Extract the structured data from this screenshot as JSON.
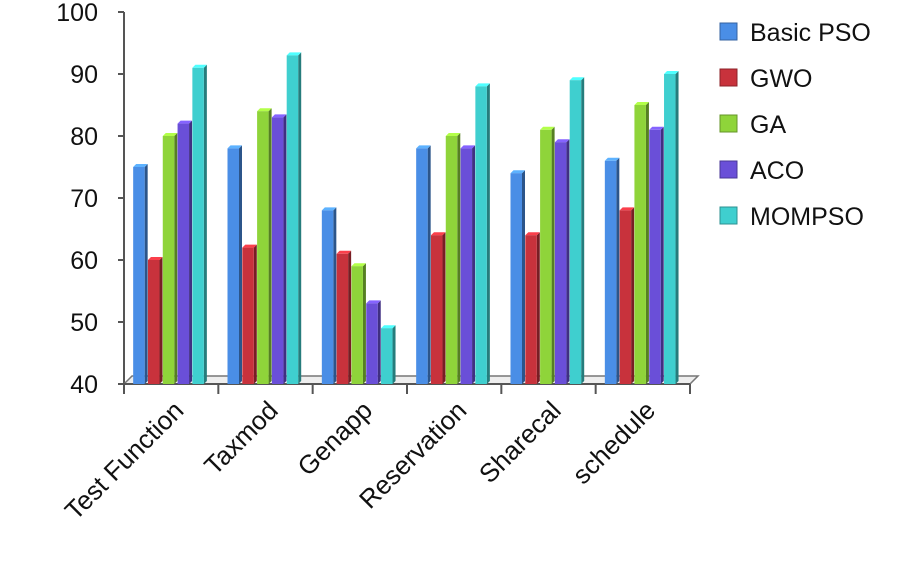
{
  "chart_data": {
    "type": "bar",
    "categories": [
      "Test Function",
      "Taxmod",
      "Genapp",
      "Reservation",
      "Sharecal",
      "schedule"
    ],
    "series": [
      {
        "name": "Basic PSO",
        "color": "#4a8ee6",
        "values": [
          75,
          78,
          68,
          78,
          74,
          76
        ]
      },
      {
        "name": "GWO",
        "color": "#c8323c",
        "values": [
          60,
          62,
          61,
          64,
          64,
          68
        ]
      },
      {
        "name": "GA",
        "color": "#8fd43a",
        "values": [
          80,
          84,
          59,
          80,
          81,
          85
        ]
      },
      {
        "name": "ACO",
        "color": "#6a4fd8",
        "values": [
          82,
          83,
          53,
          78,
          79,
          81
        ]
      },
      {
        "name": "MOMPSO",
        "color": "#3fcfcf",
        "values": [
          91,
          93,
          49,
          88,
          89,
          90
        ]
      }
    ],
    "ylim": [
      40,
      100
    ],
    "yticks": [
      "40",
      "50",
      "60",
      "70",
      "80",
      "90",
      "100"
    ],
    "legend_position": "right",
    "grid": false
  }
}
